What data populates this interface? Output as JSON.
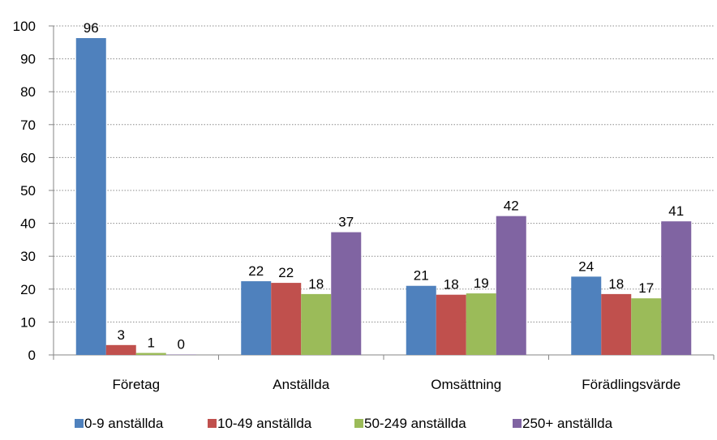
{
  "chart_data": {
    "type": "bar",
    "title": "",
    "xlabel": "",
    "ylabel": "",
    "ylim": [
      0,
      100
    ],
    "yticks": [
      0,
      10,
      20,
      30,
      40,
      50,
      60,
      70,
      80,
      90,
      100
    ],
    "grid": true,
    "legend_position": "bottom",
    "categories": [
      "Företag",
      "Anställda",
      "Omsättning",
      "Förädlingsvärde"
    ],
    "series": [
      {
        "name": "0-9 anställda",
        "color": "#4F81BD",
        "values": [
          96.3,
          22.4,
          21,
          23.8
        ],
        "labels": [
          "96",
          "22",
          "21",
          "24"
        ]
      },
      {
        "name": "10-49 anställda",
        "color": "#C0504D",
        "values": [
          3,
          21.9,
          18.3,
          18.5
        ],
        "labels": [
          "3",
          "22",
          "18",
          "18"
        ]
      },
      {
        "name": "50-249 anställda",
        "color": "#9BBB59",
        "values": [
          0.6,
          18.5,
          18.7,
          17.2
        ],
        "labels": [
          "1",
          "18",
          "19",
          "17"
        ]
      },
      {
        "name": "250+ anställda",
        "color": "#8064A2",
        "values": [
          0.1,
          37.3,
          42.2,
          40.6
        ],
        "labels": [
          "0",
          "37",
          "42",
          "41"
        ]
      }
    ]
  }
}
